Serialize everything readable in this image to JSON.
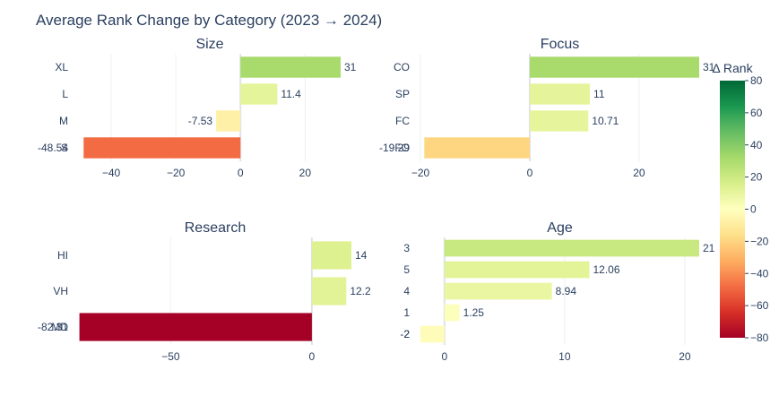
{
  "chart_data": {
    "title": "Average Rank Change by Category (2023 → 2024)",
    "colorscale": {
      "title": "Δ Rank",
      "range": [
        -80,
        80
      ],
      "ticks": [
        80,
        60,
        40,
        20,
        0,
        -20,
        -40,
        -60,
        -80
      ]
    },
    "panels": [
      {
        "title": "Size",
        "type": "bar",
        "orientation": "horizontal",
        "categories": [
          "XL",
          "L",
          "M",
          "S"
        ],
        "values": [
          31,
          11.4,
          -7.53,
          -48.54
        ],
        "labels": [
          "31",
          "11.4",
          "-7.53",
          "-48.54"
        ],
        "xticks": [
          -40,
          -20,
          0,
          20
        ],
        "xlim": [
          -50,
          31
        ]
      },
      {
        "title": "Focus",
        "type": "bar",
        "orientation": "horizontal",
        "categories": [
          "CO",
          "SP",
          "FC",
          "FO"
        ],
        "values": [
          31,
          11,
          10.71,
          -19.29
        ],
        "labels": [
          "31",
          "11",
          "10.71",
          "-19.29"
        ],
        "xticks": [
          -20,
          0,
          20
        ],
        "xlim": [
          -20,
          31
        ]
      },
      {
        "title": "Research",
        "type": "bar",
        "orientation": "horizontal",
        "categories": [
          "HI",
          "VH",
          "MD"
        ],
        "values": [
          14,
          12.2,
          -82.31
        ],
        "labels": [
          "14",
          "12.2",
          "-82.31"
        ],
        "xticks": [
          -50,
          0
        ],
        "xlim": [
          -82.5,
          14
        ]
      },
      {
        "title": "Age",
        "type": "bar",
        "orientation": "horizontal",
        "categories": [
          "3",
          "5",
          "4",
          "1",
          "2"
        ],
        "values": [
          21.2,
          12.06,
          8.94,
          1.25,
          -2
        ],
        "labels": [
          "21",
          "12.06",
          "8.94",
          "1.25",
          "-2"
        ],
        "xticks": [
          0,
          10,
          20
        ],
        "xlim": [
          -2,
          21.2
        ]
      }
    ]
  }
}
